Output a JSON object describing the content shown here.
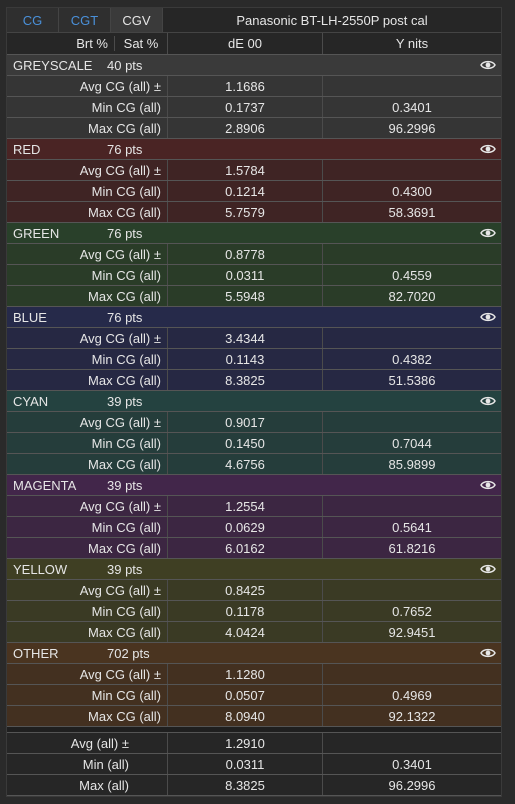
{
  "tabs": [
    {
      "label": "CG",
      "color": "#4a90d9"
    },
    {
      "label": "CGT",
      "color": "#4a90d9"
    },
    {
      "label": "CGV",
      "color": "#e6e6e6"
    }
  ],
  "title": "Panasonic BT-LH-2550P post cal",
  "sub_headers": {
    "brt": "Brt %",
    "sat": "Sat %",
    "de": "dE 00",
    "y": "Y nits"
  },
  "groups": [
    {
      "name": "GREYSCALE",
      "pts": "40 pts",
      "head_color": "#3a3a3a",
      "row_color": "#353535",
      "rows": [
        {
          "label": "Avg CG (all) ±",
          "de": "1.1686",
          "y": ""
        },
        {
          "label": "Min CG (all)",
          "de": "0.1737",
          "y": "0.3401"
        },
        {
          "label": "Max CG (all)",
          "de": "2.8906",
          "y": "96.2996"
        }
      ]
    },
    {
      "name": "RED",
      "pts": "76 pts",
      "head_color": "#4a2424",
      "row_color": "#3f2424",
      "rows": [
        {
          "label": "Avg CG (all) ±",
          "de": "1.5784",
          "y": ""
        },
        {
          "label": "Min CG (all)",
          "de": "0.1214",
          "y": "0.4300"
        },
        {
          "label": "Max CG (all)",
          "de": "5.7579",
          "y": "58.3691"
        }
      ]
    },
    {
      "name": "GREEN",
      "pts": "76 pts",
      "head_color": "#29402a",
      "row_color": "#2a3c28",
      "rows": [
        {
          "label": "Avg CG (all) ±",
          "de": "0.8778",
          "y": ""
        },
        {
          "label": "Min CG (all)",
          "de": "0.0311",
          "y": "0.4559"
        },
        {
          "label": "Max CG (all)",
          "de": "5.5948",
          "y": "82.7020"
        }
      ]
    },
    {
      "name": "BLUE",
      "pts": "76 pts",
      "head_color": "#262a4a",
      "row_color": "#262843",
      "rows": [
        {
          "label": "Avg CG (all) ±",
          "de": "3.4344",
          "y": ""
        },
        {
          "label": "Min CG (all)",
          "de": "0.1143",
          "y": "0.4382"
        },
        {
          "label": "Max CG (all)",
          "de": "8.3825",
          "y": "51.5386"
        }
      ]
    },
    {
      "name": "CYAN",
      "pts": "39 pts",
      "head_color": "#244240",
      "row_color": "#253d3b",
      "rows": [
        {
          "label": "Avg CG (all) ±",
          "de": "0.9017",
          "y": ""
        },
        {
          "label": "Min CG (all)",
          "de": "0.1450",
          "y": "0.7044"
        },
        {
          "label": "Max CG (all)",
          "de": "4.6756",
          "y": "85.9899"
        }
      ]
    },
    {
      "name": "MAGENTA",
      "pts": "39 pts",
      "head_color": "#42264a",
      "row_color": "#3c2642",
      "rows": [
        {
          "label": "Avg CG (all) ±",
          "de": "1.2554",
          "y": ""
        },
        {
          "label": "Min CG (all)",
          "de": "0.0629",
          "y": "0.5641"
        },
        {
          "label": "Max CG (all)",
          "de": "6.0162",
          "y": "61.8216"
        }
      ]
    },
    {
      "name": "YELLOW",
      "pts": "39 pts",
      "head_color": "#3f3f23",
      "row_color": "#3a3a24",
      "rows": [
        {
          "label": "Avg CG (all) ±",
          "de": "0.8425",
          "y": ""
        },
        {
          "label": "Min CG (all)",
          "de": "0.1178",
          "y": "0.7652"
        },
        {
          "label": "Max CG (all)",
          "de": "4.0424",
          "y": "92.9451"
        }
      ]
    },
    {
      "name": "OTHER",
      "pts": "702 pts",
      "head_color": "#4a3420",
      "row_color": "#433020",
      "rows": [
        {
          "label": "Avg CG (all) ±",
          "de": "1.1280",
          "y": ""
        },
        {
          "label": "Min CG (all)",
          "de": "0.0507",
          "y": "0.4969"
        },
        {
          "label": "Max CG (all)",
          "de": "8.0940",
          "y": "92.1322"
        }
      ]
    }
  ],
  "totals": [
    {
      "label": "Avg (all) ±",
      "de": "1.2910",
      "y": ""
    },
    {
      "label": "Min (all)",
      "de": "0.0311",
      "y": "0.3401"
    },
    {
      "label": "Max (all)",
      "de": "8.3825",
      "y": "96.2996"
    }
  ],
  "icons": {
    "group_toggle": "eye-icon"
  }
}
